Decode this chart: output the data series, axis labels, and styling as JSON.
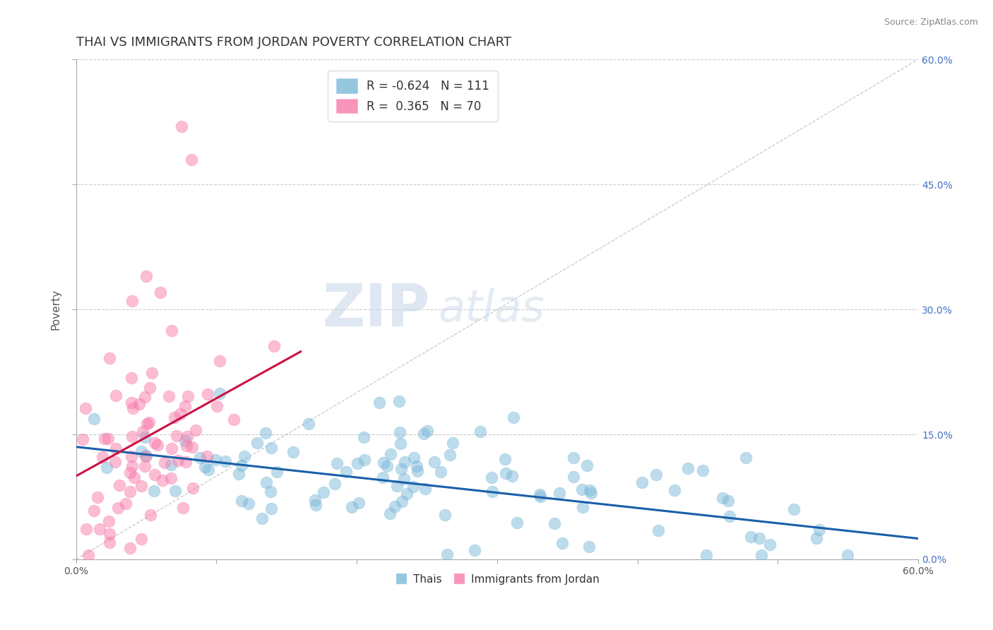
{
  "title": "THAI VS IMMIGRANTS FROM JORDAN POVERTY CORRELATION CHART",
  "source": "Source: ZipAtlas.com",
  "ylabel": "Poverty",
  "xlim": [
    0.0,
    0.6
  ],
  "ylim": [
    0.0,
    0.6
  ],
  "xtick_vals": [
    0.0,
    0.1,
    0.2,
    0.3,
    0.4,
    0.5,
    0.6
  ],
  "ytick_vals": [
    0.0,
    0.15,
    0.3,
    0.45,
    0.6
  ],
  "yticklabels_right": [
    "0.0%",
    "15.0%",
    "30.0%",
    "45.0%",
    "60.0%"
  ],
  "blue_color": "#7ab8d9",
  "pink_color": "#f87aaa",
  "blue_edge_color": "#5090bb",
  "pink_edge_color": "#e04080",
  "blue_line_color": "#1a5fa8",
  "pink_line_color": "#cc1144",
  "diag_line_color": "#bbbbbb",
  "watermark_color": "#c8d8ea",
  "blue_R": -0.624,
  "blue_N": 111,
  "pink_R": 0.365,
  "pink_N": 70,
  "seed": 77,
  "title_fontsize": 13,
  "axis_label_fontsize": 11,
  "tick_fontsize": 10,
  "legend_fontsize": 12,
  "source_fontsize": 9,
  "watermark_fontsize": 60
}
